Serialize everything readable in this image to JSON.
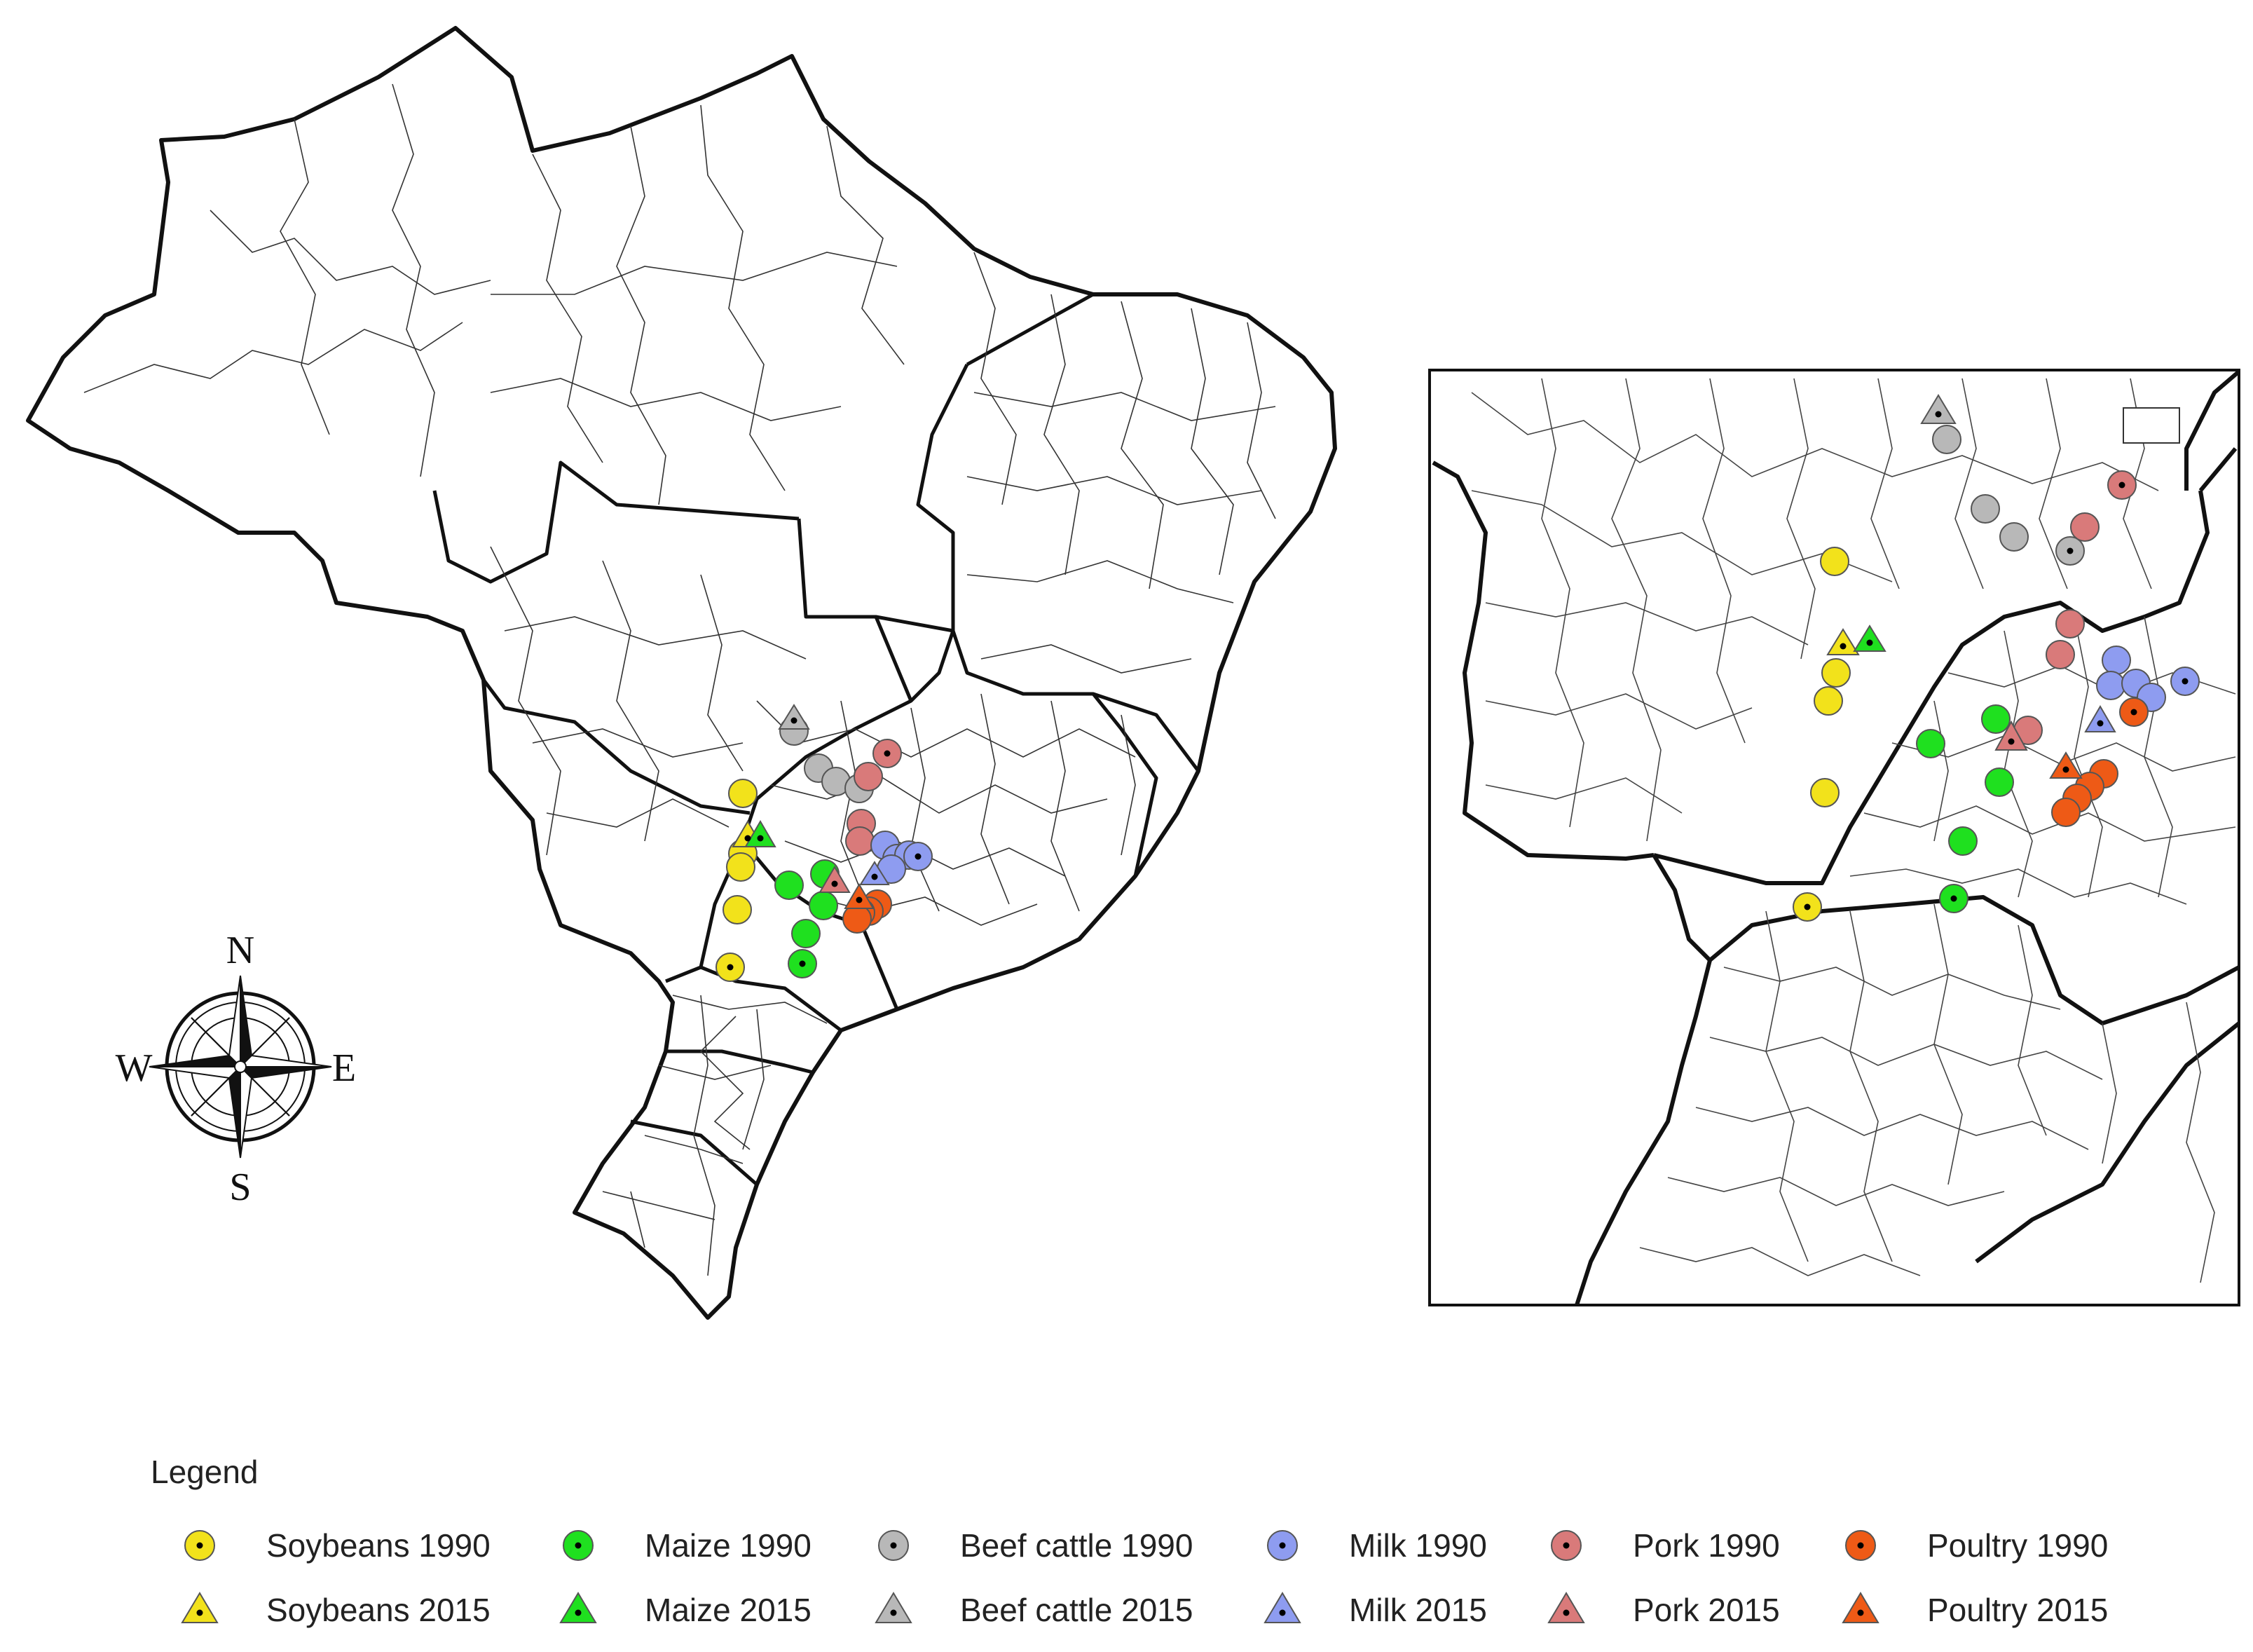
{
  "compass": {
    "north": "N",
    "south": "S",
    "east": "E",
    "west": "W"
  },
  "legend": {
    "title": "Legend",
    "items": [
      {
        "label": "Soybeans 1990",
        "color": "#f2e21b",
        "shape": "circle"
      },
      {
        "label": "Maize 1990",
        "color": "#1fe01f",
        "shape": "circle"
      },
      {
        "label": "Beef cattle 1990",
        "color": "#b8b8b8",
        "shape": "circle"
      },
      {
        "label": "Milk 1990",
        "color": "#8e9cf0",
        "shape": "circle"
      },
      {
        "label": "Pork 1990",
        "color": "#d97a7a",
        "shape": "circle"
      },
      {
        "label": "Poultry 1990",
        "color": "#ee5a16",
        "shape": "circle"
      },
      {
        "label": "Soybeans 2015",
        "color": "#f2e21b",
        "shape": "triangle"
      },
      {
        "label": "Maize 2015",
        "color": "#1fe01f",
        "shape": "triangle"
      },
      {
        "label": "Beef cattle 2015",
        "color": "#b8b8b8",
        "shape": "triangle"
      },
      {
        "label": "Milk 2015",
        "color": "#8e9cf0",
        "shape": "triangle"
      },
      {
        "label": "Pork 2015",
        "color": "#d97a7a",
        "shape": "triangle"
      },
      {
        "label": "Poultry 2015",
        "color": "#ee5a16",
        "shape": "triangle"
      }
    ]
  }
}
